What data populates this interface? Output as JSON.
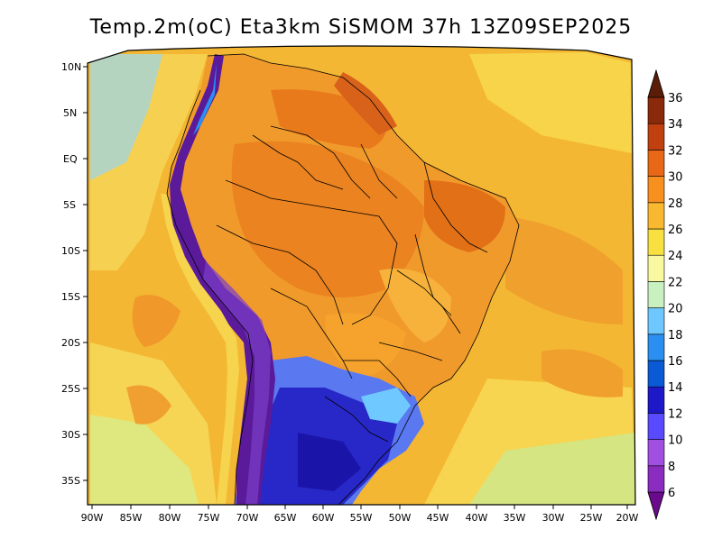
{
  "title": "Temp.2m(oC) Eta3km SiSMOM 37h 13Z09SEP2025",
  "map": {
    "variable": "2m temperature",
    "units": "oC",
    "lat_labels": [
      "10N",
      "5N",
      "EQ",
      "5S",
      "10S",
      "15S",
      "20S",
      "25S",
      "30S",
      "35S"
    ],
    "lon_labels": [
      "90W",
      "85W",
      "80W",
      "75W",
      "70W",
      "65W",
      "60W",
      "55W",
      "50W",
      "45W",
      "40W",
      "35W",
      "30W",
      "25W",
      "20W"
    ]
  },
  "colorbar": {
    "levels": [
      "6",
      "8",
      "10",
      "12",
      "14",
      "16",
      "18",
      "20",
      "22",
      "24",
      "26",
      "28",
      "30",
      "32",
      "34",
      "36"
    ],
    "colors": [
      "#6a0a8c",
      "#8a2cc0",
      "#a04fe0",
      "#5a4aff",
      "#1e18c8",
      "#0a5ad6",
      "#2a8ff0",
      "#6ec8ff",
      "#c8f0c0",
      "#f8f8a0",
      "#f8e040",
      "#f8b830",
      "#f89020",
      "#e86818",
      "#c04010",
      "#8a2a0a",
      "#5a1e08"
    ]
  },
  "palette": {
    "ocean": "#f5c23a",
    "ocean_cool": "#f8dc5a",
    "land_warm": "#f2922a",
    "land_hot": "#e8751a",
    "andes_cold": "#5a1a9a",
    "south_cold": "#3a3ae0",
    "border": "#000000"
  }
}
